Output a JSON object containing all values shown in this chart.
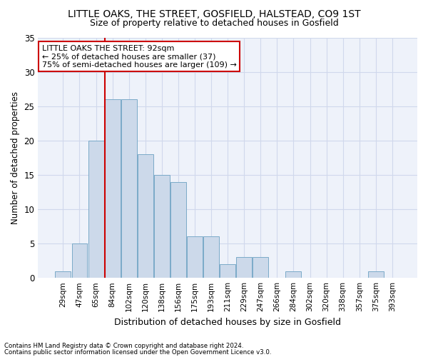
{
  "title1": "LITTLE OAKS, THE STREET, GOSFIELD, HALSTEAD, CO9 1ST",
  "title2": "Size of property relative to detached houses in Gosfield",
  "xlabel": "Distribution of detached houses by size in Gosfield",
  "ylabel": "Number of detached properties",
  "categories": [
    "29sqm",
    "47sqm",
    "65sqm",
    "84sqm",
    "102sqm",
    "120sqm",
    "138sqm",
    "156sqm",
    "175sqm",
    "193sqm",
    "211sqm",
    "229sqm",
    "247sqm",
    "266sqm",
    "284sqm",
    "302sqm",
    "320sqm",
    "338sqm",
    "357sqm",
    "375sqm",
    "393sqm"
  ],
  "values": [
    1,
    5,
    20,
    26,
    26,
    18,
    15,
    14,
    6,
    6,
    2,
    3,
    3,
    0,
    1,
    0,
    0,
    0,
    0,
    1,
    0
  ],
  "bar_color": "#ccd9ea",
  "bar_edge_color": "#7aaac8",
  "red_line_x": 3.0,
  "annotation_text": "LITTLE OAKS THE STREET: 92sqm\n← 25% of detached houses are smaller (37)\n75% of semi-detached houses are larger (109) →",
  "annotation_box_color": "white",
  "annotation_box_edge": "#cc0000",
  "ylim": [
    0,
    35
  ],
  "yticks": [
    0,
    5,
    10,
    15,
    20,
    25,
    30,
    35
  ],
  "footnote1": "Contains HM Land Registry data © Crown copyright and database right 2024.",
  "footnote2": "Contains public sector information licensed under the Open Government Licence v3.0.",
  "background_color": "#eef2fa",
  "grid_color": "#d0d8ec"
}
